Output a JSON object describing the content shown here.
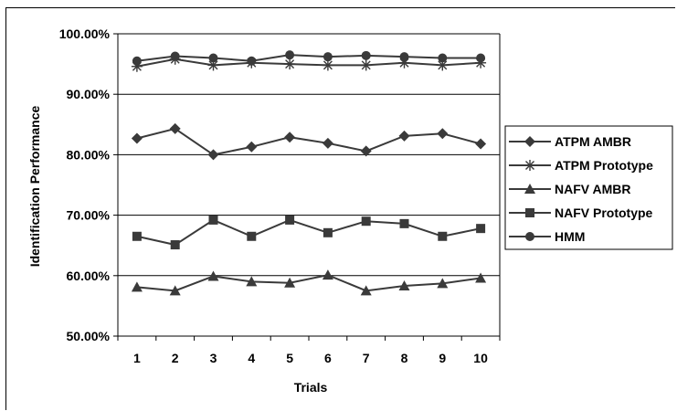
{
  "chart_data": {
    "type": "line",
    "title": "",
    "xlabel": "Trials",
    "ylabel": "Identification Performance",
    "categories": [
      "1",
      "2",
      "3",
      "4",
      "5",
      "6",
      "7",
      "8",
      "9",
      "10"
    ],
    "ylim": [
      0.5,
      1.0
    ],
    "yticks": [
      0.5,
      0.6,
      0.7,
      0.8,
      0.9,
      1.0
    ],
    "ytick_labels": [
      "50.00%",
      "60.00%",
      "70.00%",
      "80.00%",
      "90.00%",
      "100.00%"
    ],
    "grid": "horizontal",
    "legend_position": "right",
    "line_color": "#3a3a3a",
    "series": [
      {
        "name": "ATPM AMBR",
        "marker": "diamond",
        "values": [
          0.827,
          0.843,
          0.8,
          0.813,
          0.829,
          0.819,
          0.806,
          0.831,
          0.835,
          0.818
        ]
      },
      {
        "name": "ATPM Prototype",
        "marker": "asterisk",
        "values": [
          0.946,
          0.958,
          0.948,
          0.952,
          0.95,
          0.948,
          0.948,
          0.952,
          0.948,
          0.952
        ]
      },
      {
        "name": "NAFV AMBR",
        "marker": "triangle",
        "values": [
          0.581,
          0.575,
          0.599,
          0.59,
          0.588,
          0.601,
          0.575,
          0.583,
          0.587,
          0.596
        ]
      },
      {
        "name": "NAFV Prototype",
        "marker": "square",
        "values": [
          0.665,
          0.651,
          0.692,
          0.665,
          0.692,
          0.671,
          0.69,
          0.686,
          0.665,
          0.678
        ]
      },
      {
        "name": "HMM",
        "marker": "circle",
        "values": [
          0.955,
          0.963,
          0.96,
          0.955,
          0.965,
          0.962,
          0.964,
          0.962,
          0.96,
          0.96
        ]
      }
    ]
  }
}
